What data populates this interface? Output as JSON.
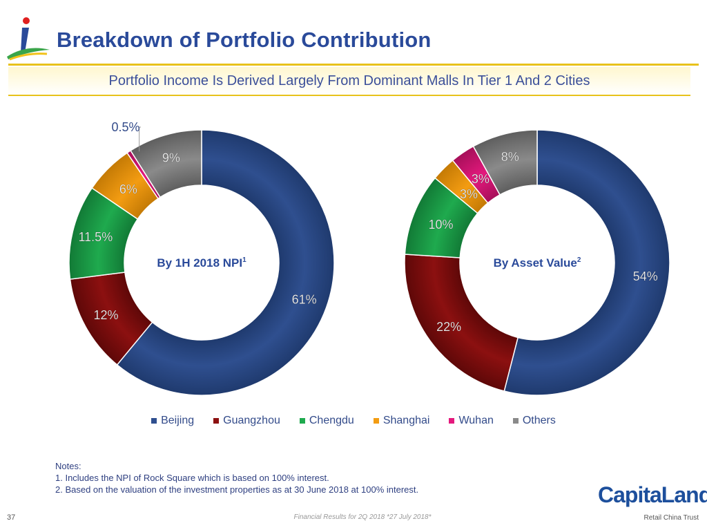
{
  "header": {
    "title": "Breakdown of Portfolio Contribution",
    "subtitle": "Portfolio Income Is Derived Largely From Dominant Malls In Tier 1 And 2 Cities"
  },
  "colors": {
    "Beijing": "#2f4f8f",
    "Guangzhou": "#8c1010",
    "Chengdu": "#1faa4e",
    "Shanghai": "#f39c12",
    "Wuhan": "#e4197d",
    "Others": "#8a8a8a",
    "title": "#2a4a9a",
    "rule": "#e8c21a"
  },
  "chart_data": [
    {
      "type": "pie",
      "donut": true,
      "center_label": "By 1H 2018 NPI",
      "center_label_sup": "1",
      "categories": [
        "Beijing",
        "Guangzhou",
        "Chengdu",
        "Shanghai",
        "Wuhan",
        "Others"
      ],
      "values": [
        61,
        12,
        11.5,
        6,
        0.5,
        9
      ],
      "labels": [
        "61%",
        "12%",
        "11.5%",
        "6%",
        "0.5%",
        "9%"
      ]
    },
    {
      "type": "pie",
      "donut": true,
      "center_label": "By Asset Value",
      "center_label_sup": "2",
      "categories": [
        "Beijing",
        "Guangzhou",
        "Chengdu",
        "Shanghai",
        "Wuhan",
        "Others"
      ],
      "values": [
        54,
        22,
        10,
        3,
        3,
        8
      ],
      "labels": [
        "54%",
        "22%",
        "10%",
        "3%",
        "3%",
        "8%"
      ]
    }
  ],
  "legend": [
    {
      "label": "Beijing",
      "color": "#2f4f8f"
    },
    {
      "label": "Guangzhou",
      "color": "#8c1010"
    },
    {
      "label": "Chengdu",
      "color": "#1faa4e"
    },
    {
      "label": "Shanghai",
      "color": "#f39c12"
    },
    {
      "label": "Wuhan",
      "color": "#e4197d"
    },
    {
      "label": "Others",
      "color": "#8a8a8a"
    }
  ],
  "notes": {
    "heading": "Notes:",
    "items": [
      "1.  Includes the NPI of Rock Square which is based on 100% interest.",
      "2.  Based on the valuation of the investment properties as at 30 June 2018 at 100% interest."
    ]
  },
  "footer": {
    "page_number": "37",
    "text": "Financial Results for 2Q 2018 *27 July 2018*",
    "brand": "CapitaLand",
    "brand_sub": "Retail China Trust"
  }
}
